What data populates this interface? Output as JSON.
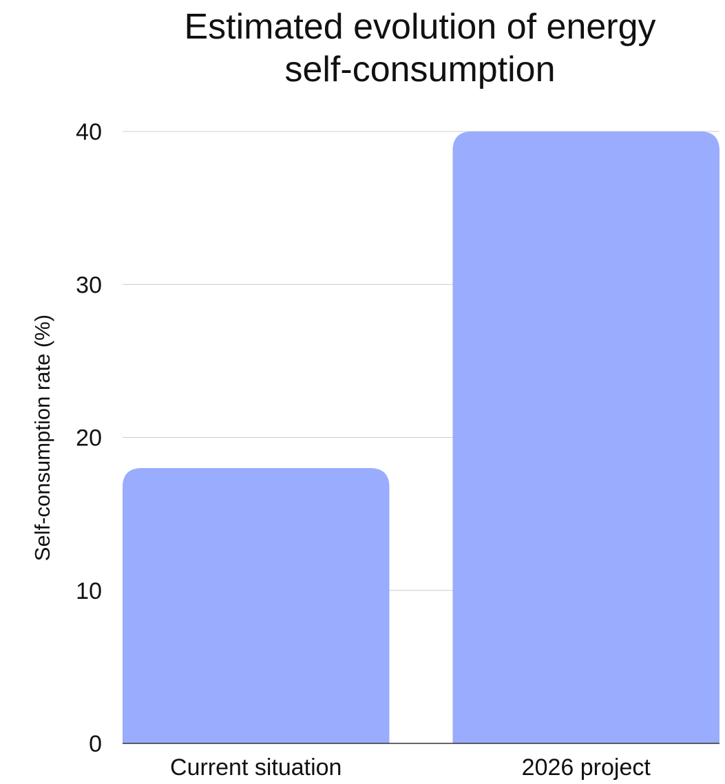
{
  "chart_data": {
    "type": "bar",
    "title": "Estimated evolution of energy self-consumption",
    "title_lines": [
      "Estimated evolution of energy",
      "self-consumption"
    ],
    "xlabel": "",
    "ylabel": "Self-consumption rate (%)",
    "categories": [
      "Current situation",
      "2026 project"
    ],
    "values": [
      18,
      40
    ],
    "ylim": [
      0,
      40
    ],
    "yticks": [
      0,
      10,
      20,
      30,
      40
    ],
    "grid": true,
    "bar_color": "#9aacfe",
    "grid_color": "#cccccc",
    "axis_color": "#333333"
  }
}
